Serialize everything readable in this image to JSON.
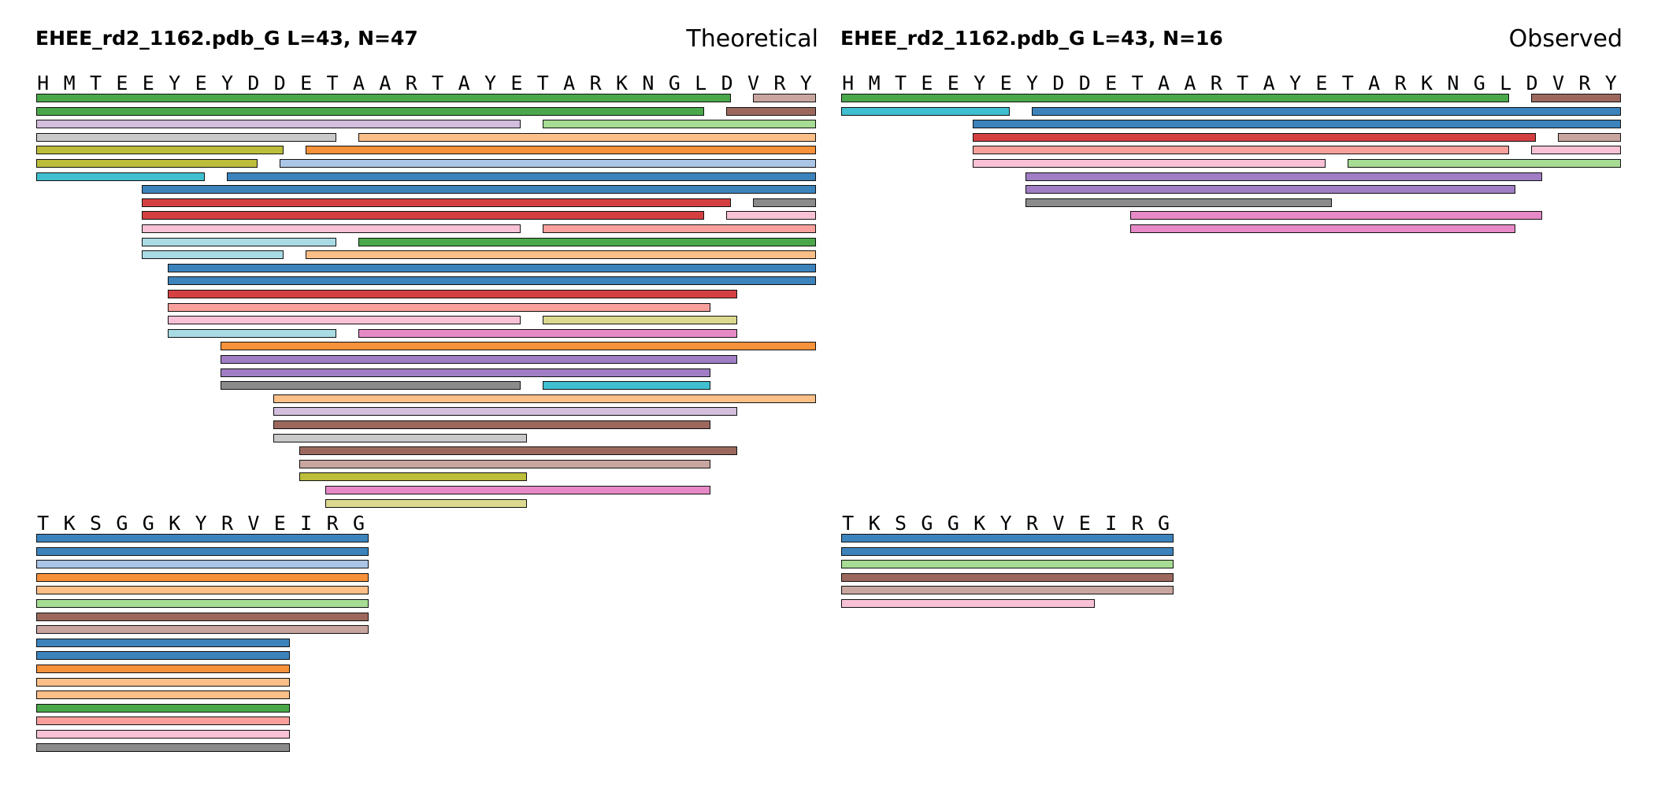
{
  "colors": {
    "green": "#4aa84a",
    "rosybrown": "#c9a5a0",
    "brown": "#9c685e",
    "lavender": "#d3bede",
    "lightgreen": "#a6dc93",
    "lightgray": "#c9c9c9",
    "peach": "#fdbf88",
    "olive": "#bcbd3a",
    "orange": "#f7913a",
    "lightblue": "#aac5e6",
    "cyan": "#3fbfcf",
    "blue": "#3c83bc",
    "red": "#d44042",
    "gray": "#8b8b8b",
    "pink": "#f8c1d6",
    "salmon": "#f9a09c",
    "paleblue": "#a9dbe4",
    "khaki": "#dad98f",
    "violet": "#e789c6",
    "purple": "#a07dc4"
  },
  "panels": [
    {
      "id": "theoretical",
      "title": "EHEE_rd2_1162.pdb_G  L=43, N=47",
      "label": "Theoretical",
      "blocks": [
        {
          "sequence": [
            "H",
            "M",
            "T",
            "E",
            "E",
            "Y",
            "E",
            "Y",
            "D",
            "D",
            "E",
            "T",
            "A",
            "A",
            "R",
            "T",
            "A",
            "Y",
            "E",
            "T",
            "A",
            "R",
            "K",
            "N",
            "G",
            "L",
            "D",
            "V",
            "R",
            "Y"
          ],
          "peptides": [
            {
              "start": 1,
              "end": 27,
              "color": "green"
            },
            {
              "start": 28,
              "end": 30,
              "color": "rosybrown"
            },
            {
              "start": 1,
              "end": 26,
              "color": "green"
            },
            {
              "start": 27,
              "end": 30,
              "color": "brown"
            },
            {
              "start": 1,
              "end": 19,
              "color": "lavender"
            },
            {
              "start": 20,
              "end": 30,
              "color": "lightgreen"
            },
            {
              "start": 1,
              "end": 12,
              "color": "lightgray"
            },
            {
              "start": 13,
              "end": 30,
              "color": "peach"
            },
            {
              "start": 1,
              "end": 10,
              "color": "olive"
            },
            {
              "start": 11,
              "end": 30,
              "color": "orange"
            },
            {
              "start": 1,
              "end": 9,
              "color": "olive"
            },
            {
              "start": 10,
              "end": 30,
              "color": "lightblue"
            },
            {
              "start": 1,
              "end": 7,
              "color": "cyan"
            },
            {
              "start": 8,
              "end": 30,
              "color": "blue"
            },
            {
              "start": 5,
              "end": 30,
              "color": "blue"
            },
            {
              "start": 5,
              "end": 27,
              "color": "red"
            },
            {
              "start": 28,
              "end": 30,
              "color": "gray"
            },
            {
              "start": 5,
              "end": 26,
              "color": "red"
            },
            {
              "start": 27,
              "end": 30,
              "color": "pink"
            },
            {
              "start": 5,
              "end": 19,
              "color": "pink"
            },
            {
              "start": 20,
              "end": 30,
              "color": "salmon"
            },
            {
              "start": 5,
              "end": 12,
              "color": "paleblue"
            },
            {
              "start": 13,
              "end": 30,
              "color": "green"
            },
            {
              "start": 5,
              "end": 10,
              "color": "paleblue"
            },
            {
              "start": 11,
              "end": 30,
              "color": "peach"
            },
            {
              "start": 6,
              "end": 30,
              "color": "blue"
            },
            {
              "start": 6,
              "end": 30,
              "color": "blue"
            },
            {
              "start": 6,
              "end": 27,
              "color": "red"
            },
            {
              "start": 6,
              "end": 26,
              "color": "salmon"
            },
            {
              "start": 6,
              "end": 19,
              "color": "pink"
            },
            {
              "start": 20,
              "end": 27,
              "color": "khaki"
            },
            {
              "start": 6,
              "end": 12,
              "color": "paleblue"
            },
            {
              "start": 13,
              "end": 27,
              "color": "violet"
            },
            {
              "start": 8,
              "end": 30,
              "color": "orange"
            },
            {
              "start": 8,
              "end": 27,
              "color": "purple"
            },
            {
              "start": 8,
              "end": 26,
              "color": "purple"
            },
            {
              "start": 8,
              "end": 19,
              "color": "gray"
            },
            {
              "start": 20,
              "end": 26,
              "color": "cyan"
            },
            {
              "start": 10,
              "end": 30,
              "color": "peach"
            },
            {
              "start": 10,
              "end": 27,
              "color": "lavender"
            },
            {
              "start": 10,
              "end": 26,
              "color": "brown"
            },
            {
              "start": 10,
              "end": 19,
              "color": "lightgray"
            },
            {
              "start": 11,
              "end": 27,
              "color": "brown"
            },
            {
              "start": 11,
              "end": 26,
              "color": "rosybrown"
            },
            {
              "start": 11,
              "end": 19,
              "color": "olive"
            },
            {
              "start": 12,
              "end": 26,
              "color": "violet"
            },
            {
              "start": 12,
              "end": 19,
              "color": "khaki"
            }
          ],
          "rows": [
            [
              0,
              1
            ],
            [
              2,
              3
            ],
            [
              4,
              5
            ],
            [
              6,
              7
            ],
            [
              8,
              9
            ],
            [
              10,
              11
            ],
            [
              12,
              13
            ],
            [
              14
            ],
            [
              15,
              16
            ],
            [
              17,
              18
            ],
            [
              19,
              20
            ],
            [
              21,
              22
            ],
            [
              23,
              24
            ],
            [
              25
            ],
            [
              26
            ],
            [
              27
            ],
            [
              28
            ],
            [
              29,
              30
            ],
            [
              31,
              32
            ],
            [
              33
            ],
            [
              34
            ],
            [
              35
            ],
            [
              36,
              37
            ],
            [
              38
            ],
            [
              39
            ],
            [
              40
            ],
            [
              41
            ],
            [
              42
            ],
            [
              43
            ],
            [
              44
            ],
            [
              45
            ],
            [
              46
            ]
          ]
        },
        {
          "sequence": [
            "T",
            "K",
            "S",
            "G",
            "G",
            "K",
            "Y",
            "R",
            "V",
            "E",
            "I",
            "R",
            "G"
          ],
          "peptides": [
            {
              "start": 1,
              "end": 13,
              "color": "blue"
            },
            {
              "start": 1,
              "end": 13,
              "color": "blue"
            },
            {
              "start": 1,
              "end": 13,
              "color": "lightblue"
            },
            {
              "start": 1,
              "end": 13,
              "color": "orange"
            },
            {
              "start": 1,
              "end": 13,
              "color": "peach"
            },
            {
              "start": 1,
              "end": 13,
              "color": "lightgreen"
            },
            {
              "start": 1,
              "end": 13,
              "color": "brown"
            },
            {
              "start": 1,
              "end": 13,
              "color": "rosybrown"
            },
            {
              "start": 1,
              "end": 10,
              "color": "blue"
            },
            {
              "start": 1,
              "end": 10,
              "color": "blue"
            },
            {
              "start": 1,
              "end": 10,
              "color": "orange"
            },
            {
              "start": 1,
              "end": 10,
              "color": "peach"
            },
            {
              "start": 1,
              "end": 10,
              "color": "peach"
            },
            {
              "start": 1,
              "end": 10,
              "color": "green"
            },
            {
              "start": 1,
              "end": 10,
              "color": "salmon"
            },
            {
              "start": 1,
              "end": 10,
              "color": "pink"
            },
            {
              "start": 1,
              "end": 10,
              "color": "gray"
            }
          ],
          "rows": [
            [
              0
            ],
            [
              1
            ],
            [
              2
            ],
            [
              3
            ],
            [
              4
            ],
            [
              5
            ],
            [
              6
            ],
            [
              7
            ],
            [
              8
            ],
            [
              9
            ],
            [
              10
            ],
            [
              11
            ],
            [
              12
            ],
            [
              13
            ],
            [
              14
            ],
            [
              15
            ],
            [
              16
            ]
          ]
        }
      ]
    },
    {
      "id": "observed",
      "title": "EHEE_rd2_1162.pdb_G  L=43, N=16",
      "label": "Observed",
      "blocks": [
        {
          "sequence": [
            "H",
            "M",
            "T",
            "E",
            "E",
            "Y",
            "E",
            "Y",
            "D",
            "D",
            "E",
            "T",
            "A",
            "A",
            "R",
            "T",
            "A",
            "Y",
            "E",
            "T",
            "A",
            "R",
            "K",
            "N",
            "G",
            "L",
            "D",
            "V",
            "R",
            "Y"
          ],
          "peptides": [
            {
              "start": 1,
              "end": 26,
              "color": "green"
            },
            {
              "start": 27,
              "end": 30,
              "color": "brown"
            },
            {
              "start": 1,
              "end": 7,
              "color": "cyan"
            },
            {
              "start": 8,
              "end": 30,
              "color": "blue"
            },
            {
              "start": 6,
              "end": 30,
              "color": "blue"
            },
            {
              "start": 6,
              "end": 27,
              "color": "red"
            },
            {
              "start": 28,
              "end": 30,
              "color": "rosybrown"
            },
            {
              "start": 6,
              "end": 26,
              "color": "salmon"
            },
            {
              "start": 27,
              "end": 30,
              "color": "pink"
            },
            {
              "start": 6,
              "end": 19,
              "color": "pink"
            },
            {
              "start": 20,
              "end": 30,
              "color": "lightgreen"
            },
            {
              "start": 8,
              "end": 27,
              "color": "purple"
            },
            {
              "start": 8,
              "end": 26,
              "color": "purple"
            },
            {
              "start": 8,
              "end": 19,
              "color": "gray"
            },
            {
              "start": 12,
              "end": 27,
              "color": "violet"
            },
            {
              "start": 12,
              "end": 26,
              "color": "violet"
            }
          ],
          "rows": [
            [
              0,
              1
            ],
            [
              2,
              3
            ],
            [
              4
            ],
            [
              5,
              6
            ],
            [
              7,
              8
            ],
            [
              9,
              10
            ],
            [
              11
            ],
            [
              12
            ],
            [
              13
            ],
            [
              14
            ],
            [
              15
            ]
          ]
        },
        {
          "sequence": [
            "T",
            "K",
            "S",
            "G",
            "G",
            "K",
            "Y",
            "R",
            "V",
            "E",
            "I",
            "R",
            "G"
          ],
          "peptides": [
            {
              "start": 1,
              "end": 13,
              "color": "blue"
            },
            {
              "start": 1,
              "end": 13,
              "color": "blue"
            },
            {
              "start": 1,
              "end": 13,
              "color": "lightgreen"
            },
            {
              "start": 1,
              "end": 13,
              "color": "brown"
            },
            {
              "start": 1,
              "end": 13,
              "color": "rosybrown"
            },
            {
              "start": 1,
              "end": 10,
              "color": "pink"
            }
          ],
          "rows": [
            [
              0
            ],
            [
              1
            ],
            [
              2
            ],
            [
              3
            ],
            [
              4
            ],
            [
              5
            ]
          ]
        }
      ]
    }
  ]
}
